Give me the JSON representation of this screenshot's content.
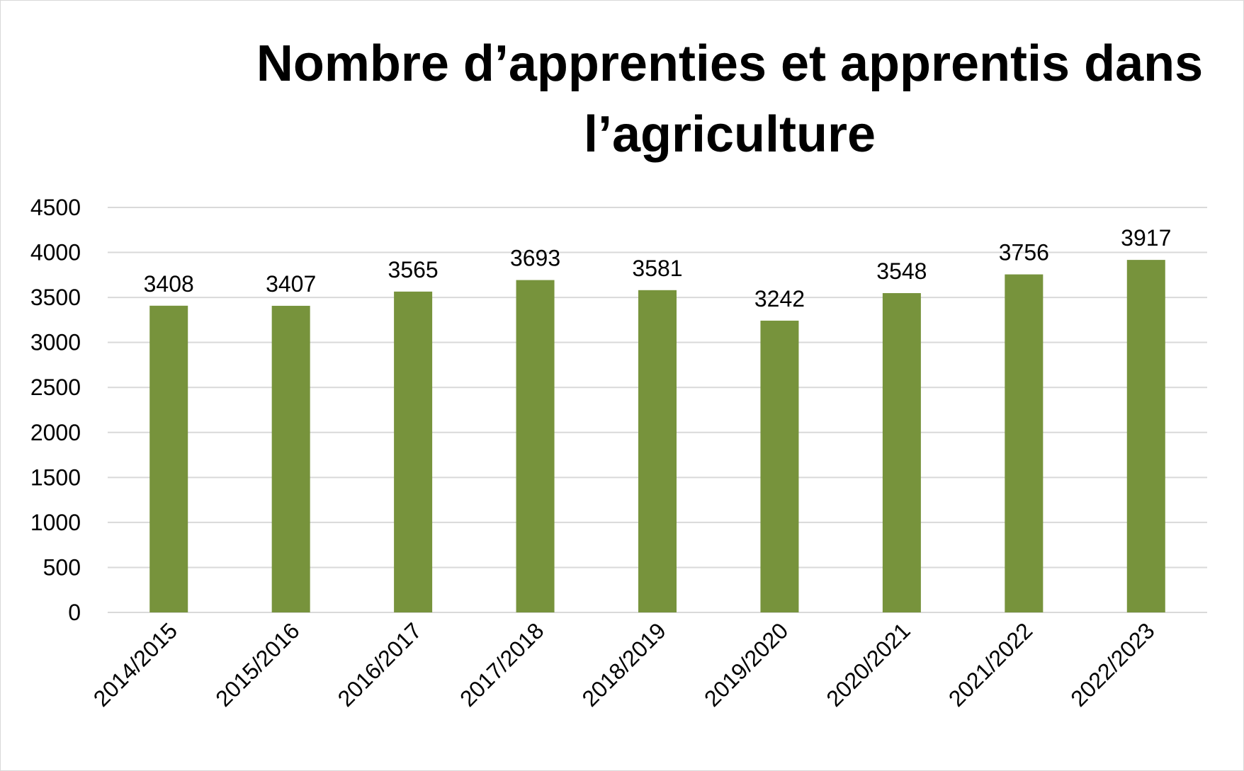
{
  "chart_data": {
    "type": "bar",
    "title": "Nombre d’apprenties et apprentis dans l’agriculture",
    "categories": [
      "2014/2015",
      "2015/2016",
      "2016/2017",
      "2017/2018",
      "2018/2019",
      "2019/2020",
      "2020/2021",
      "2021/2022",
      "2022/2023"
    ],
    "values": [
      3408,
      3407,
      3565,
      3693,
      3581,
      3242,
      3548,
      3756,
      3917
    ],
    "data_labels": [
      "3408",
      "3407",
      "3565",
      "3693",
      "3581",
      "3242",
      "3548",
      "3756",
      "3917"
    ],
    "yticks": [
      "0",
      "500",
      "1000",
      "1500",
      "2000",
      "2500",
      "3000",
      "3500",
      "4000",
      "4500"
    ],
    "ylim": [
      0,
      4500
    ],
    "grid": true,
    "legend": "none",
    "bar_color": "#77933c",
    "grid_color": "#d9d9d9"
  }
}
